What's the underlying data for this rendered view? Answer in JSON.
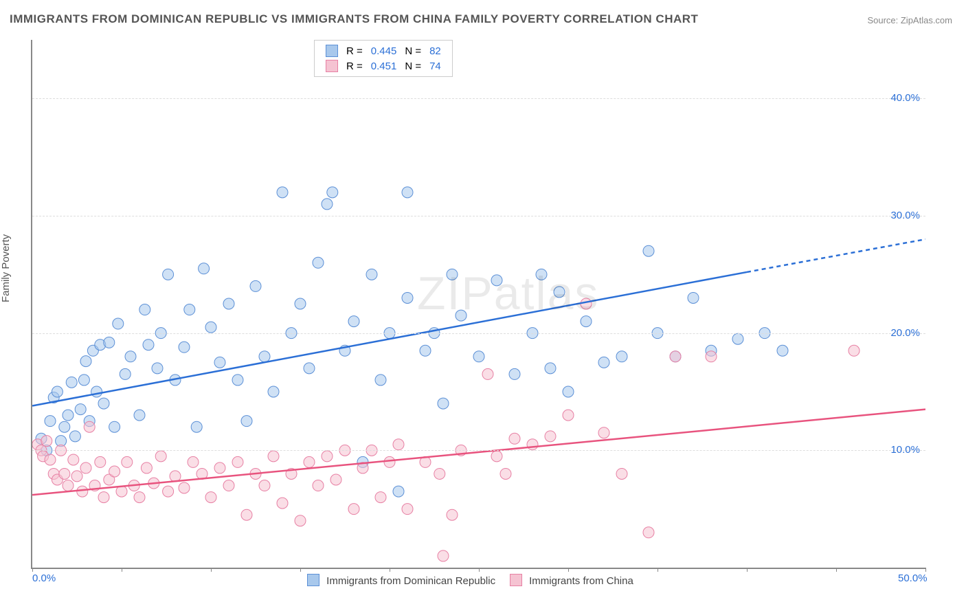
{
  "title": "IMMIGRANTS FROM DOMINICAN REPUBLIC VS IMMIGRANTS FROM CHINA FAMILY POVERTY CORRELATION CHART",
  "source_prefix": "Source: ",
  "source_name": "ZipAtlas.com",
  "y_axis_label": "Family Poverty",
  "watermark": "ZIPatlas",
  "chart": {
    "type": "scatter",
    "xlim": [
      0,
      50
    ],
    "ylim": [
      0,
      45
    ],
    "x_ticks": [
      0,
      5,
      10,
      15,
      20,
      25,
      30,
      35,
      40,
      45,
      50
    ],
    "x_tick_labels": {
      "0": "0.0%",
      "50": "50.0%"
    },
    "y_grid": [
      10,
      20,
      30,
      40
    ],
    "y_tick_labels": {
      "10": "10.0%",
      "20": "20.0%",
      "30": "30.0%",
      "40": "40.0%"
    },
    "x_label_color": "#2b6fd6",
    "y_label_color": "#2b6fd6",
    "grid_color": "#dddddd",
    "axis_color": "#888888",
    "background_color": "#ffffff",
    "marker_radius": 8,
    "marker_opacity": 0.55,
    "line_width": 2.5
  },
  "series": [
    {
      "name": "Immigrants from Dominican Republic",
      "color_fill": "#a8c8ec",
      "color_stroke": "#5b8fd6",
      "line_color": "#2b6fd6",
      "R": "0.445",
      "N": "82",
      "trend": {
        "x1": 0,
        "y1": 13.8,
        "x2": 40,
        "y2": 25.2,
        "dash_x2": 50,
        "dash_y2": 28.0
      },
      "points": [
        [
          0.5,
          11.0
        ],
        [
          0.8,
          10.0
        ],
        [
          1.0,
          12.5
        ],
        [
          1.2,
          14.5
        ],
        [
          1.4,
          15.0
        ],
        [
          1.6,
          10.8
        ],
        [
          1.8,
          12.0
        ],
        [
          2.0,
          13.0
        ],
        [
          2.2,
          15.8
        ],
        [
          2.4,
          11.2
        ],
        [
          2.7,
          13.5
        ],
        [
          2.9,
          16.0
        ],
        [
          3.0,
          17.6
        ],
        [
          3.2,
          12.5
        ],
        [
          3.4,
          18.5
        ],
        [
          3.6,
          15.0
        ],
        [
          3.8,
          19.0
        ],
        [
          4.0,
          14.0
        ],
        [
          4.3,
          19.2
        ],
        [
          4.6,
          12.0
        ],
        [
          4.8,
          20.8
        ],
        [
          5.2,
          16.5
        ],
        [
          5.5,
          18.0
        ],
        [
          6.0,
          13.0
        ],
        [
          6.3,
          22.0
        ],
        [
          6.5,
          19.0
        ],
        [
          7.0,
          17.0
        ],
        [
          7.2,
          20.0
        ],
        [
          7.6,
          25.0
        ],
        [
          8.0,
          16.0
        ],
        [
          8.5,
          18.8
        ],
        [
          8.8,
          22.0
        ],
        [
          9.2,
          12.0
        ],
        [
          9.6,
          25.5
        ],
        [
          10.0,
          20.5
        ],
        [
          10.5,
          17.5
        ],
        [
          11.0,
          22.5
        ],
        [
          11.5,
          16.0
        ],
        [
          12.0,
          12.5
        ],
        [
          12.5,
          24.0
        ],
        [
          13.0,
          18.0
        ],
        [
          13.5,
          15.0
        ],
        [
          14.0,
          32.0
        ],
        [
          14.5,
          20.0
        ],
        [
          15.0,
          22.5
        ],
        [
          15.5,
          17.0
        ],
        [
          16.0,
          26.0
        ],
        [
          16.5,
          31.0
        ],
        [
          16.8,
          32.0
        ],
        [
          17.5,
          18.5
        ],
        [
          18.0,
          21.0
        ],
        [
          18.5,
          9.0
        ],
        [
          19.0,
          25.0
        ],
        [
          19.5,
          16.0
        ],
        [
          20.0,
          20.0
        ],
        [
          20.5,
          6.5
        ],
        [
          21.0,
          32.0
        ],
        [
          21.0,
          23.0
        ],
        [
          22.0,
          18.5
        ],
        [
          22.5,
          20.0
        ],
        [
          23.0,
          14.0
        ],
        [
          23.5,
          25.0
        ],
        [
          24.0,
          21.5
        ],
        [
          25.0,
          18.0
        ],
        [
          26.0,
          24.5
        ],
        [
          27.0,
          16.5
        ],
        [
          28.0,
          20.0
        ],
        [
          28.5,
          25.0
        ],
        [
          29.0,
          17.0
        ],
        [
          29.5,
          23.5
        ],
        [
          30.0,
          15.0
        ],
        [
          31.0,
          21.0
        ],
        [
          32.0,
          17.5
        ],
        [
          33.0,
          18.0
        ],
        [
          34.5,
          27.0
        ],
        [
          35.0,
          20.0
        ],
        [
          36.0,
          18.0
        ],
        [
          37.0,
          23.0
        ],
        [
          38.0,
          18.5
        ],
        [
          39.5,
          19.5
        ],
        [
          41.0,
          20.0
        ],
        [
          42.0,
          18.5
        ]
      ]
    },
    {
      "name": "Immigrants from China",
      "color_fill": "#f5c3d2",
      "color_stroke": "#e77fa3",
      "line_color": "#e8537e",
      "R": "0.451",
      "N": "74",
      "trend": {
        "x1": 0,
        "y1": 6.2,
        "x2": 50,
        "y2": 13.5
      },
      "points": [
        [
          0.3,
          10.5
        ],
        [
          0.5,
          10.0
        ],
        [
          0.6,
          9.5
        ],
        [
          0.8,
          10.8
        ],
        [
          1.0,
          9.2
        ],
        [
          1.2,
          8.0
        ],
        [
          1.4,
          7.5
        ],
        [
          1.6,
          10.0
        ],
        [
          1.8,
          8.0
        ],
        [
          2.0,
          7.0
        ],
        [
          2.3,
          9.2
        ],
        [
          2.5,
          7.8
        ],
        [
          2.8,
          6.5
        ],
        [
          3.0,
          8.5
        ],
        [
          3.2,
          12.0
        ],
        [
          3.5,
          7.0
        ],
        [
          3.8,
          9.0
        ],
        [
          4.0,
          6.0
        ],
        [
          4.3,
          7.5
        ],
        [
          4.6,
          8.2
        ],
        [
          5.0,
          6.5
        ],
        [
          5.3,
          9.0
        ],
        [
          5.7,
          7.0
        ],
        [
          6.0,
          6.0
        ],
        [
          6.4,
          8.5
        ],
        [
          6.8,
          7.2
        ],
        [
          7.2,
          9.5
        ],
        [
          7.6,
          6.5
        ],
        [
          8.0,
          7.8
        ],
        [
          8.5,
          6.8
        ],
        [
          9.0,
          9.0
        ],
        [
          9.5,
          8.0
        ],
        [
          10.0,
          6.0
        ],
        [
          10.5,
          8.5
        ],
        [
          11.0,
          7.0
        ],
        [
          11.5,
          9.0
        ],
        [
          12.0,
          4.5
        ],
        [
          12.5,
          8.0
        ],
        [
          13.0,
          7.0
        ],
        [
          13.5,
          9.5
        ],
        [
          14.0,
          5.5
        ],
        [
          14.5,
          8.0
        ],
        [
          15.0,
          4.0
        ],
        [
          15.5,
          9.0
        ],
        [
          16.0,
          7.0
        ],
        [
          16.5,
          9.5
        ],
        [
          17.0,
          7.5
        ],
        [
          17.5,
          10.0
        ],
        [
          18.0,
          5.0
        ],
        [
          18.5,
          8.5
        ],
        [
          19.0,
          10.0
        ],
        [
          19.5,
          6.0
        ],
        [
          20.0,
          9.0
        ],
        [
          20.5,
          10.5
        ],
        [
          21.0,
          5.0
        ],
        [
          22.0,
          9.0
        ],
        [
          22.8,
          8.0
        ],
        [
          23.0,
          1.0
        ],
        [
          23.5,
          4.5
        ],
        [
          24.0,
          10.0
        ],
        [
          25.5,
          16.5
        ],
        [
          26.0,
          9.5
        ],
        [
          26.5,
          8.0
        ],
        [
          27.0,
          11.0
        ],
        [
          28.0,
          10.5
        ],
        [
          29.0,
          11.2
        ],
        [
          30.0,
          13.0
        ],
        [
          31.0,
          22.5
        ],
        [
          32.0,
          11.5
        ],
        [
          33.0,
          8.0
        ],
        [
          34.5,
          3.0
        ],
        [
          36.0,
          18.0
        ],
        [
          38.0,
          18.0
        ],
        [
          46.0,
          18.5
        ]
      ]
    }
  ],
  "legend_stats": {
    "r_label": "R =",
    "n_label": "N ="
  }
}
